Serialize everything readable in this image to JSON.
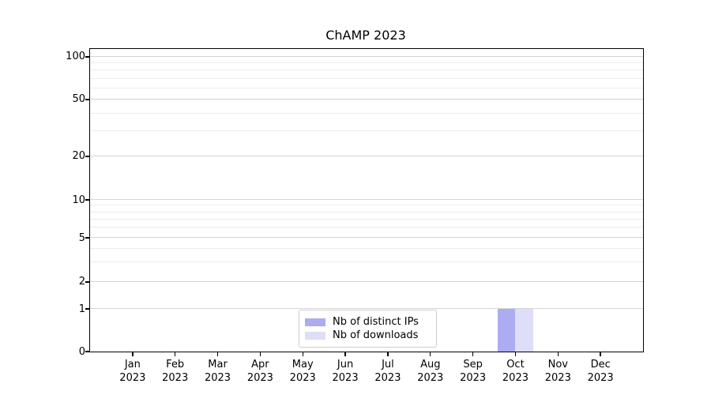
{
  "figure": {
    "background": "#ffffff"
  },
  "chart_data": {
    "type": "bar",
    "title": "ChAMP 2023",
    "categories": [
      "Jan 2023",
      "Feb 2023",
      "Mar 2023",
      "Apr 2023",
      "May 2023",
      "Jun 2023",
      "Jul 2023",
      "Aug 2023",
      "Sep 2023",
      "Oct 2023",
      "Nov 2023",
      "Dec 2023"
    ],
    "x_tick_labels": [
      {
        "month": "Jan",
        "year": "2023"
      },
      {
        "month": "Feb",
        "year": "2023"
      },
      {
        "month": "Mar",
        "year": "2023"
      },
      {
        "month": "Apr",
        "year": "2023"
      },
      {
        "month": "May",
        "year": "2023"
      },
      {
        "month": "Jun",
        "year": "2023"
      },
      {
        "month": "Jul",
        "year": "2023"
      },
      {
        "month": "Aug",
        "year": "2023"
      },
      {
        "month": "Sep",
        "year": "2023"
      },
      {
        "month": "Oct",
        "year": "2023"
      },
      {
        "month": "Nov",
        "year": "2023"
      },
      {
        "month": "Dec",
        "year": "2023"
      }
    ],
    "series": [
      {
        "name": "Nb of distinct IPs",
        "color": "#abacf2",
        "values": [
          0,
          0,
          0,
          0,
          0,
          0,
          0,
          0,
          0,
          1,
          0,
          0
        ]
      },
      {
        "name": "Nb of downloads",
        "color": "#dedef8",
        "values": [
          0,
          0,
          0,
          0,
          0,
          0,
          0,
          0,
          0,
          1,
          0,
          0
        ]
      }
    ],
    "xlabel": "",
    "ylabel": "",
    "yscale": "symlog",
    "ylim": [
      0,
      110
    ],
    "yticks": [
      100,
      50,
      20,
      10,
      5,
      2,
      1,
      0
    ],
    "yticks_minor": [
      3,
      4,
      6,
      7,
      8,
      9,
      30,
      40,
      60,
      70,
      80,
      90
    ],
    "grid": true,
    "legend": {
      "position": "lower center",
      "entries": [
        "Nb of distinct IPs",
        "Nb of downloads"
      ]
    }
  },
  "colors": {
    "grid_major": "#d4d4d4",
    "grid_minor": "#ececec",
    "axis": "#000000",
    "legend_border": "#cccccc"
  }
}
